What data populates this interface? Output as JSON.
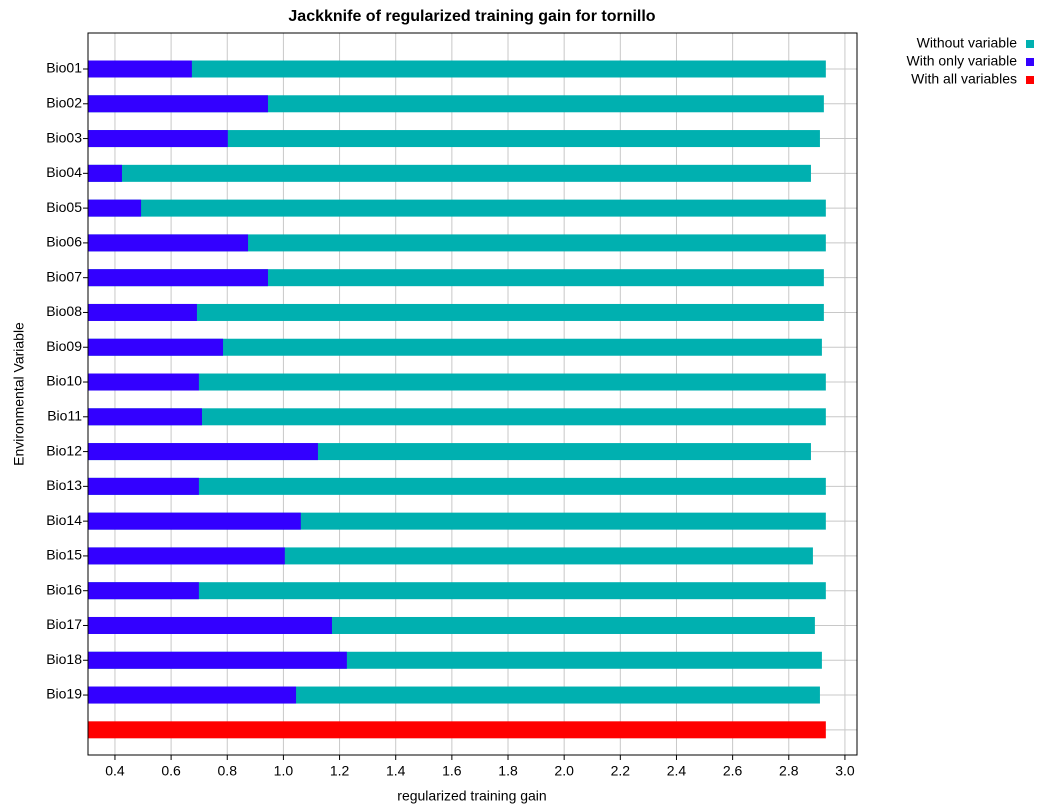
{
  "chart_data": {
    "type": "jackknife-bar",
    "title": "Jackknife of regularized training gain for tornillo",
    "x_label": "regularized training gain",
    "y_label": "Environmental Variable",
    "categories": [
      "Bio01",
      "Bio02",
      "Bio03",
      "Bio04",
      "Bio05",
      "Bio06",
      "Bio07",
      "Bio08",
      "Bio09",
      "Bio10",
      "Bio11",
      "Bio12",
      "Bio13",
      "Bio14",
      "Bio15",
      "Bio16",
      "Bio17",
      "Bio18",
      "Bio19",
      null
    ],
    "series": [
      {
        "name": "Without variable",
        "color": "#00b0b0",
        "values": [
          2.932,
          2.925,
          2.911,
          2.879,
          2.932,
          2.932,
          2.925,
          2.925,
          2.918,
          2.932,
          2.932,
          2.879,
          2.932,
          2.932,
          2.886,
          2.932,
          2.893,
          2.918,
          2.911,
          null
        ]
      },
      {
        "name": "With only variable",
        "color": "#3300ff",
        "values": [
          0.674,
          0.945,
          0.802,
          0.425,
          0.493,
          0.874,
          0.945,
          0.692,
          0.785,
          0.699,
          0.71,
          1.123,
          0.699,
          1.062,
          1.005,
          0.699,
          1.173,
          1.226,
          1.045,
          null
        ]
      },
      {
        "name": "With all variables",
        "color": "#ff0000",
        "values": [
          null,
          null,
          null,
          null,
          null,
          null,
          null,
          null,
          null,
          null,
          null,
          null,
          null,
          null,
          null,
          null,
          null,
          null,
          null,
          2.932
        ]
      }
    ],
    "xlim": [
      0.304,
      3.043
    ],
    "xticks": [
      0.4,
      0.6,
      0.8,
      {
        "value": 1,
        "label": "1.0"
      },
      1.2,
      1.4,
      1.6,
      1.8,
      {
        "value": 2,
        "label": "2.0"
      },
      2.2,
      2.4,
      2.6,
      2.8,
      {
        "value": 3,
        "label": "3.0"
      }
    ],
    "grid": true,
    "legend": "top-right"
  }
}
